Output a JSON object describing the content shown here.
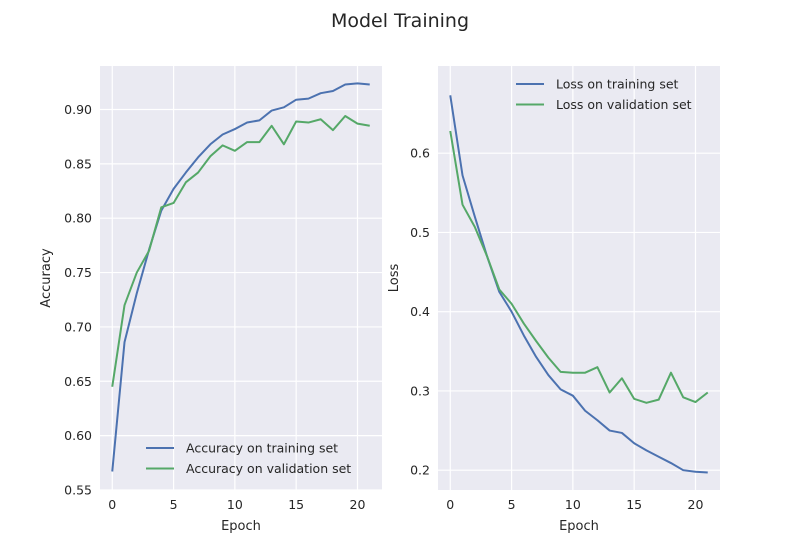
{
  "figure_title": "Model Training",
  "colors": {
    "training": "#4c72b0",
    "validation": "#55a868",
    "panel_bg": "#eaeaf2",
    "grid": "#ffffff"
  },
  "chart_data": [
    {
      "type": "line",
      "xlabel": "Epoch",
      "ylabel": "Accuracy",
      "xlim": [
        -1,
        22
      ],
      "ylim": [
        0.55,
        0.94
      ],
      "xticks": [
        0,
        5,
        10,
        15,
        20
      ],
      "xtick_labels": [
        "0",
        "5",
        "10",
        "15",
        "20"
      ],
      "yticks": [
        0.55,
        0.6,
        0.65,
        0.7,
        0.75,
        0.8,
        0.85,
        0.9
      ],
      "ytick_labels": [
        "0.55",
        "0.60",
        "0.65",
        "0.70",
        "0.75",
        "0.80",
        "0.85",
        "0.90"
      ],
      "grid": true,
      "legend_position": "lower-right",
      "x": [
        0,
        1,
        2,
        3,
        4,
        5,
        6,
        7,
        8,
        9,
        10,
        11,
        12,
        13,
        14,
        15,
        16,
        17,
        18,
        19,
        20,
        21
      ],
      "series": [
        {
          "name": "Accuracy on training set",
          "color": "#4c72b0",
          "values": [
            0.567,
            0.686,
            0.731,
            0.771,
            0.807,
            0.827,
            0.842,
            0.856,
            0.868,
            0.877,
            0.882,
            0.888,
            0.89,
            0.899,
            0.902,
            0.909,
            0.91,
            0.915,
            0.917,
            0.923,
            0.924,
            0.923
          ]
        },
        {
          "name": "Accuracy on validation set",
          "color": "#55a868",
          "values": [
            0.645,
            0.72,
            0.75,
            0.77,
            0.81,
            0.814,
            0.833,
            0.842,
            0.857,
            0.867,
            0.862,
            0.87,
            0.87,
            0.885,
            0.868,
            0.889,
            0.888,
            0.891,
            0.881,
            0.894,
            0.887,
            0.885
          ]
        }
      ]
    },
    {
      "type": "line",
      "xlabel": "Epoch",
      "ylabel": "Loss",
      "xlim": [
        -1,
        22
      ],
      "ylim": [
        0.175,
        0.71
      ],
      "xticks": [
        0,
        5,
        10,
        15,
        20
      ],
      "xtick_labels": [
        "0",
        "5",
        "10",
        "15",
        "20"
      ],
      "yticks": [
        0.2,
        0.3,
        0.4,
        0.5,
        0.6
      ],
      "ytick_labels": [
        "0.2",
        "0.3",
        "0.4",
        "0.5",
        "0.6"
      ],
      "grid": true,
      "legend_position": "upper-right",
      "x": [
        0,
        1,
        2,
        3,
        4,
        5,
        6,
        7,
        8,
        9,
        10,
        11,
        12,
        13,
        14,
        15,
        16,
        17,
        18,
        19,
        20,
        21
      ],
      "series": [
        {
          "name": "Loss on training set",
          "color": "#4c72b0",
          "values": [
            0.673,
            0.572,
            0.52,
            0.47,
            0.425,
            0.4,
            0.37,
            0.343,
            0.32,
            0.302,
            0.294,
            0.275,
            0.263,
            0.25,
            0.247,
            0.234,
            0.225,
            0.217,
            0.209,
            0.2,
            0.198,
            0.197
          ]
        },
        {
          "name": "Loss on validation set",
          "color": "#55a868",
          "values": [
            0.628,
            0.535,
            0.507,
            0.47,
            0.428,
            0.41,
            0.385,
            0.363,
            0.342,
            0.324,
            0.323,
            0.323,
            0.33,
            0.298,
            0.316,
            0.29,
            0.285,
            0.289,
            0.323,
            0.292,
            0.286,
            0.298
          ]
        }
      ]
    }
  ]
}
